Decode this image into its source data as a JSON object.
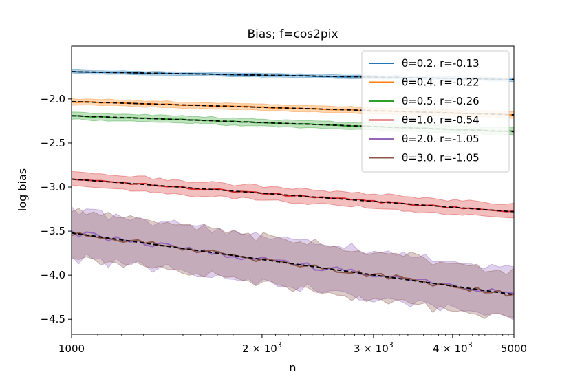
{
  "chart_data": {
    "type": "line",
    "title": "Bias;  f=cos2pix",
    "xlabel": "n",
    "ylabel": "log bias",
    "xscale": "log",
    "xlim": [
      1000,
      5000
    ],
    "ylim": [
      -4.67,
      -1.4
    ],
    "x_ticks": [
      {
        "value": 1000,
        "base": "1000",
        "exp": ""
      },
      {
        "value": 2000,
        "base": "2 × 10",
        "exp": "3"
      },
      {
        "value": 3000,
        "base": "3 × 10",
        "exp": "3"
      },
      {
        "value": 4000,
        "base": "4 × 10",
        "exp": "3"
      },
      {
        "value": 5000,
        "base": "5000",
        "exp": ""
      }
    ],
    "y_ticks": [
      {
        "value": -2.0,
        "label": "−2.0"
      },
      {
        "value": -2.5,
        "label": "−2.5"
      },
      {
        "value": -3.0,
        "label": "−3.0"
      },
      {
        "value": -3.5,
        "label": "−3.5"
      },
      {
        "value": -4.0,
        "label": "−4.0"
      },
      {
        "value": -4.5,
        "label": "−4.5"
      }
    ],
    "legend_position": "top-right",
    "series": [
      {
        "name": "θ=0.2. r=-0.13",
        "color": "#1f77b4",
        "start": -1.69,
        "end": -1.78,
        "band": 0.02,
        "noise": 0.004
      },
      {
        "name": "θ=0.4. r=-0.22",
        "color": "#ff7f0e",
        "start": -2.03,
        "end": -2.18,
        "band": 0.035,
        "noise": 0.006
      },
      {
        "name": "θ=0.5. r=-0.26",
        "color": "#2ca02c",
        "start": -2.19,
        "end": -2.37,
        "band": 0.04,
        "noise": 0.006
      },
      {
        "name": "θ=1.0. r=-0.54",
        "color": "#d62728",
        "start": -2.91,
        "end": -3.28,
        "band": 0.08,
        "noise": 0.012
      },
      {
        "name": "θ=2.0. r=-1.05",
        "color": "#9467bd",
        "start": -3.52,
        "end": -4.22,
        "band": 0.27,
        "noise": 0.035
      },
      {
        "name": "θ=3.0. r=-1.05",
        "color": "#8c564b",
        "start": -3.52,
        "end": -4.22,
        "band": 0.27,
        "noise": 0.035
      }
    ],
    "fit_line_style": "black dashed"
  }
}
